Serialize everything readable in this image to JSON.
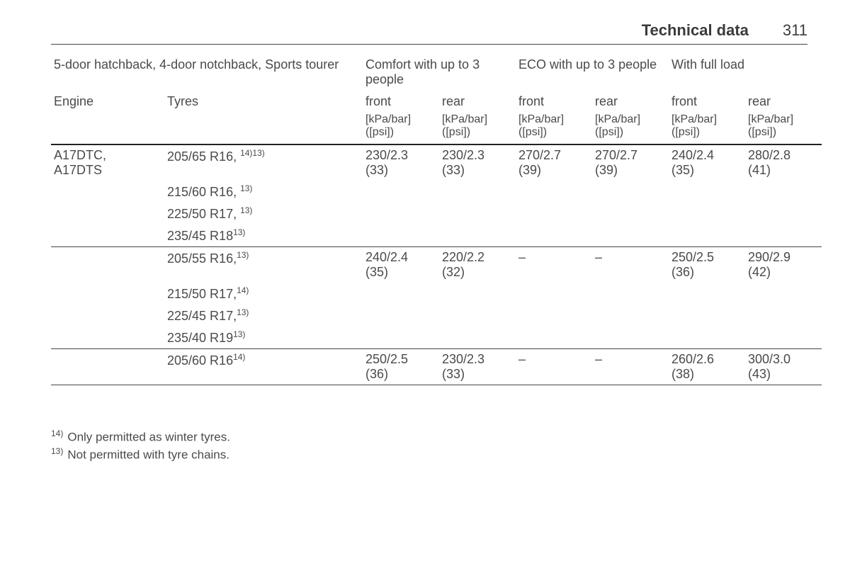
{
  "header": {
    "title": "Technical data",
    "page_number": "311"
  },
  "table": {
    "caption": "5-door hatchback, 4-door notchback, Sports tourer",
    "groups": {
      "comfort": "Comfort with up to 3 people",
      "eco": "ECO with up to 3 people",
      "full": "With full load"
    },
    "columns": {
      "engine": "Engine",
      "tyres": "Tyres",
      "front": "front",
      "rear": "rear"
    },
    "unit_line1": "[kPa/bar]",
    "unit_line2": "([psi])",
    "rows": [
      {
        "engine_line1": "A17DTC,",
        "engine_line2": "A17DTS",
        "tyres": "205/65 R16, ",
        "tyres_sup": "14)13)",
        "v": [
          "230/2.3",
          "(33)",
          "230/2.3",
          "(33)",
          "270/2.7",
          "(39)",
          "270/2.7",
          "(39)",
          "240/2.4",
          "(35)",
          "280/2.8",
          "(41)"
        ]
      },
      {
        "tyres": "215/60 R16, ",
        "tyres_sup": "13)"
      },
      {
        "tyres": "225/50 R17, ",
        "tyres_sup": "13)"
      },
      {
        "tyres": "235/45 R18",
        "tyres_sup": "13)",
        "sep_after": true
      },
      {
        "tyres": "205/55 R16,",
        "tyres_sup": "13)",
        "v": [
          "240/2.4",
          "(35)",
          "220/2.2",
          "(32)",
          "–",
          "",
          "–",
          "",
          "250/2.5",
          "(36)",
          "290/2.9",
          "(42)"
        ]
      },
      {
        "tyres": "215/50 R17,",
        "tyres_sup": "14)"
      },
      {
        "tyres": "225/45 R17,",
        "tyres_sup": "13)"
      },
      {
        "tyres": "235/40 R19",
        "tyres_sup": "13)",
        "sep_after": true
      },
      {
        "tyres": "205/60 R16",
        "tyres_sup": "14)",
        "v": [
          "250/2.5",
          "(36)",
          "230/2.3",
          "(33)",
          "–",
          "",
          "–",
          "",
          "260/2.6",
          "(38)",
          "300/3.0",
          "(43)"
        ],
        "sep_after": true
      }
    ]
  },
  "footnotes": [
    {
      "mark": "14)",
      "text": "Only permitted as winter tyres."
    },
    {
      "mark": "13)",
      "text": "Not permitted with tyre chains."
    }
  ]
}
